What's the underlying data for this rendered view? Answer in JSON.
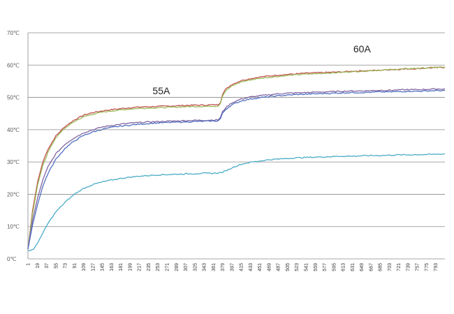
{
  "chart_data": {
    "type": "line",
    "title": "",
    "xlabel": "",
    "ylabel": "",
    "ylim": [
      0,
      70
    ],
    "y_ticks": [
      "0℃",
      "10℃",
      "20℃",
      "30℃",
      "40℃",
      "50℃",
      "60℃",
      "70℃"
    ],
    "y_tick_values": [
      0,
      10,
      20,
      30,
      40,
      50,
      60,
      70
    ],
    "xlim": [
      1,
      811
    ],
    "x_ticks": [
      "1",
      "19",
      "37",
      "55",
      "73",
      "91",
      "109",
      "127",
      "145",
      "163",
      "181",
      "199",
      "217",
      "235",
      "253",
      "271",
      "289",
      "307",
      "325",
      "343",
      "361",
      "379",
      "397",
      "415",
      "433",
      "451",
      "469",
      "487",
      "505",
      "523",
      "541",
      "559",
      "577",
      "595",
      "613",
      "631",
      "649",
      "667",
      "685",
      "703",
      "721",
      "739",
      "757",
      "775",
      "793"
    ],
    "grid": true,
    "legend": "none",
    "annotations": [
      {
        "text": "55A",
        "x": 260,
        "y": 51
      },
      {
        "text": "60A",
        "x": 650,
        "y": 64
      }
    ],
    "series": [
      {
        "color": "#c0504d",
        "x": [
          1,
          10,
          20,
          30,
          40,
          55,
          73,
          91,
          109,
          127,
          145,
          163,
          181,
          199,
          217,
          235,
          253,
          271,
          289,
          307,
          325,
          343,
          361,
          370,
          375,
          379,
          385,
          397,
          415,
          433,
          451,
          469,
          487,
          505,
          523,
          541,
          559,
          577,
          595,
          613,
          631,
          649,
          667,
          685,
          703,
          721,
          739,
          757,
          775,
          793,
          811
        ],
        "y": [
          3,
          15,
          24,
          30,
          34,
          38,
          41,
          43,
          44.5,
          45.3,
          45.8,
          46.2,
          46.5,
          46.8,
          47.0,
          47.1,
          47.2,
          47.3,
          47.4,
          47.5,
          47.6,
          47.6,
          47.7,
          47.7,
          48.5,
          51,
          52.5,
          54,
          55.2,
          55.8,
          56.3,
          56.6,
          56.9,
          57.1,
          57.3,
          57.5,
          57.6,
          57.7,
          57.8,
          57.9,
          58.1,
          58.2,
          58.3,
          58.4,
          58.6,
          58.7,
          58.8,
          58.9,
          59.1,
          59.2,
          59.3
        ]
      },
      {
        "color": "#9bbb59",
        "x": [
          1,
          10,
          20,
          30,
          40,
          55,
          73,
          91,
          109,
          127,
          145,
          163,
          181,
          199,
          217,
          235,
          253,
          271,
          289,
          307,
          325,
          343,
          361,
          370,
          375,
          379,
          385,
          397,
          415,
          433,
          451,
          469,
          487,
          505,
          523,
          541,
          559,
          577,
          595,
          613,
          631,
          649,
          667,
          685,
          703,
          721,
          739,
          757,
          775,
          793,
          811
        ],
        "y": [
          3,
          14,
          23,
          29,
          33,
          37.5,
          40.5,
          42.5,
          44,
          44.8,
          45.4,
          45.8,
          46.1,
          46.4,
          46.6,
          46.7,
          46.8,
          46.9,
          47.0,
          47.1,
          47.2,
          47.2,
          47.3,
          47.3,
          48.2,
          50.5,
          52,
          53.5,
          54.8,
          55.4,
          55.9,
          56.2,
          56.5,
          56.8,
          57.0,
          57.2,
          57.3,
          57.5,
          57.6,
          57.8,
          58.0,
          58.1,
          58.3,
          58.4,
          58.6,
          58.7,
          58.9,
          59.0,
          59.1,
          59.3,
          59.4
        ]
      },
      {
        "color": "#8064a2",
        "x": [
          1,
          10,
          20,
          30,
          40,
          55,
          73,
          91,
          109,
          127,
          145,
          163,
          181,
          199,
          217,
          235,
          253,
          271,
          289,
          307,
          325,
          343,
          361,
          370,
          375,
          379,
          385,
          397,
          415,
          433,
          451,
          469,
          487,
          505,
          523,
          541,
          559,
          577,
          595,
          613,
          631,
          649,
          667,
          685,
          703,
          721,
          739,
          757,
          775,
          793,
          811
        ],
        "y": [
          3,
          12,
          19,
          24.5,
          28.5,
          32.5,
          35.5,
          37.5,
          39,
          40,
          40.8,
          41.3,
          41.7,
          42.0,
          42.2,
          42.4,
          42.5,
          42.6,
          42.7,
          42.8,
          42.9,
          42.9,
          43.0,
          43.0,
          43.8,
          45.5,
          46.8,
          48.3,
          49.5,
          50.1,
          50.5,
          50.8,
          51.1,
          51.3,
          51.4,
          51.5,
          51.6,
          51.7,
          51.8,
          51.9,
          52.0,
          52.0,
          52.1,
          52.2,
          52.2,
          52.3,
          52.4,
          52.4,
          52.5,
          52.6,
          52.6
        ]
      },
      {
        "color": "#4f6fc0",
        "x": [
          1,
          10,
          20,
          30,
          40,
          55,
          73,
          91,
          109,
          127,
          145,
          163,
          181,
          199,
          217,
          235,
          253,
          271,
          289,
          307,
          325,
          343,
          361,
          370,
          375,
          379,
          385,
          397,
          415,
          433,
          451,
          469,
          487,
          505,
          523,
          541,
          559,
          577,
          595,
          613,
          631,
          649,
          667,
          685,
          703,
          721,
          739,
          757,
          775,
          793,
          811
        ],
        "y": [
          3,
          10.5,
          17,
          22.5,
          26.5,
          30.8,
          34.2,
          36.5,
          38.2,
          39.3,
          40.1,
          40.7,
          41.1,
          41.4,
          41.7,
          41.9,
          42.1,
          42.2,
          42.3,
          42.4,
          42.5,
          42.6,
          42.7,
          42.7,
          43.4,
          45.0,
          46.3,
          47.7,
          48.9,
          49.5,
          49.9,
          50.2,
          50.5,
          50.7,
          50.9,
          51.0,
          51.1,
          51.2,
          51.3,
          51.4,
          51.5,
          51.5,
          51.6,
          51.7,
          51.7,
          51.8,
          51.9,
          51.9,
          52.0,
          52.1,
          52.1
        ]
      },
      {
        "color": "#4bacc6",
        "x": [
          1,
          5,
          12,
          20,
          30,
          40,
          55,
          73,
          91,
          109,
          127,
          145,
          163,
          181,
          199,
          217,
          235,
          253,
          271,
          289,
          307,
          325,
          343,
          361,
          370,
          379,
          390,
          400,
          415,
          433,
          451,
          469,
          487,
          505,
          523,
          541,
          559,
          577,
          595,
          613,
          631,
          649,
          667,
          685,
          703,
          721,
          739,
          757,
          775,
          793,
          811
        ],
        "y": [
          2.5,
          2.6,
          3.0,
          5,
          8,
          11,
          14.5,
          17.5,
          20.0,
          21.8,
          23.0,
          23.8,
          24.4,
          24.9,
          25.3,
          25.6,
          25.8,
          26.0,
          26.1,
          26.2,
          26.3,
          26.4,
          26.5,
          26.5,
          26.6,
          26.8,
          27.6,
          28.4,
          29.3,
          29.9,
          30.3,
          30.7,
          30.9,
          31.1,
          31.3,
          31.4,
          31.5,
          31.6,
          31.7,
          31.8,
          31.8,
          31.9,
          32.0,
          32.0,
          32.1,
          32.2,
          32.2,
          32.3,
          32.3,
          32.4,
          32.5
        ]
      }
    ]
  }
}
